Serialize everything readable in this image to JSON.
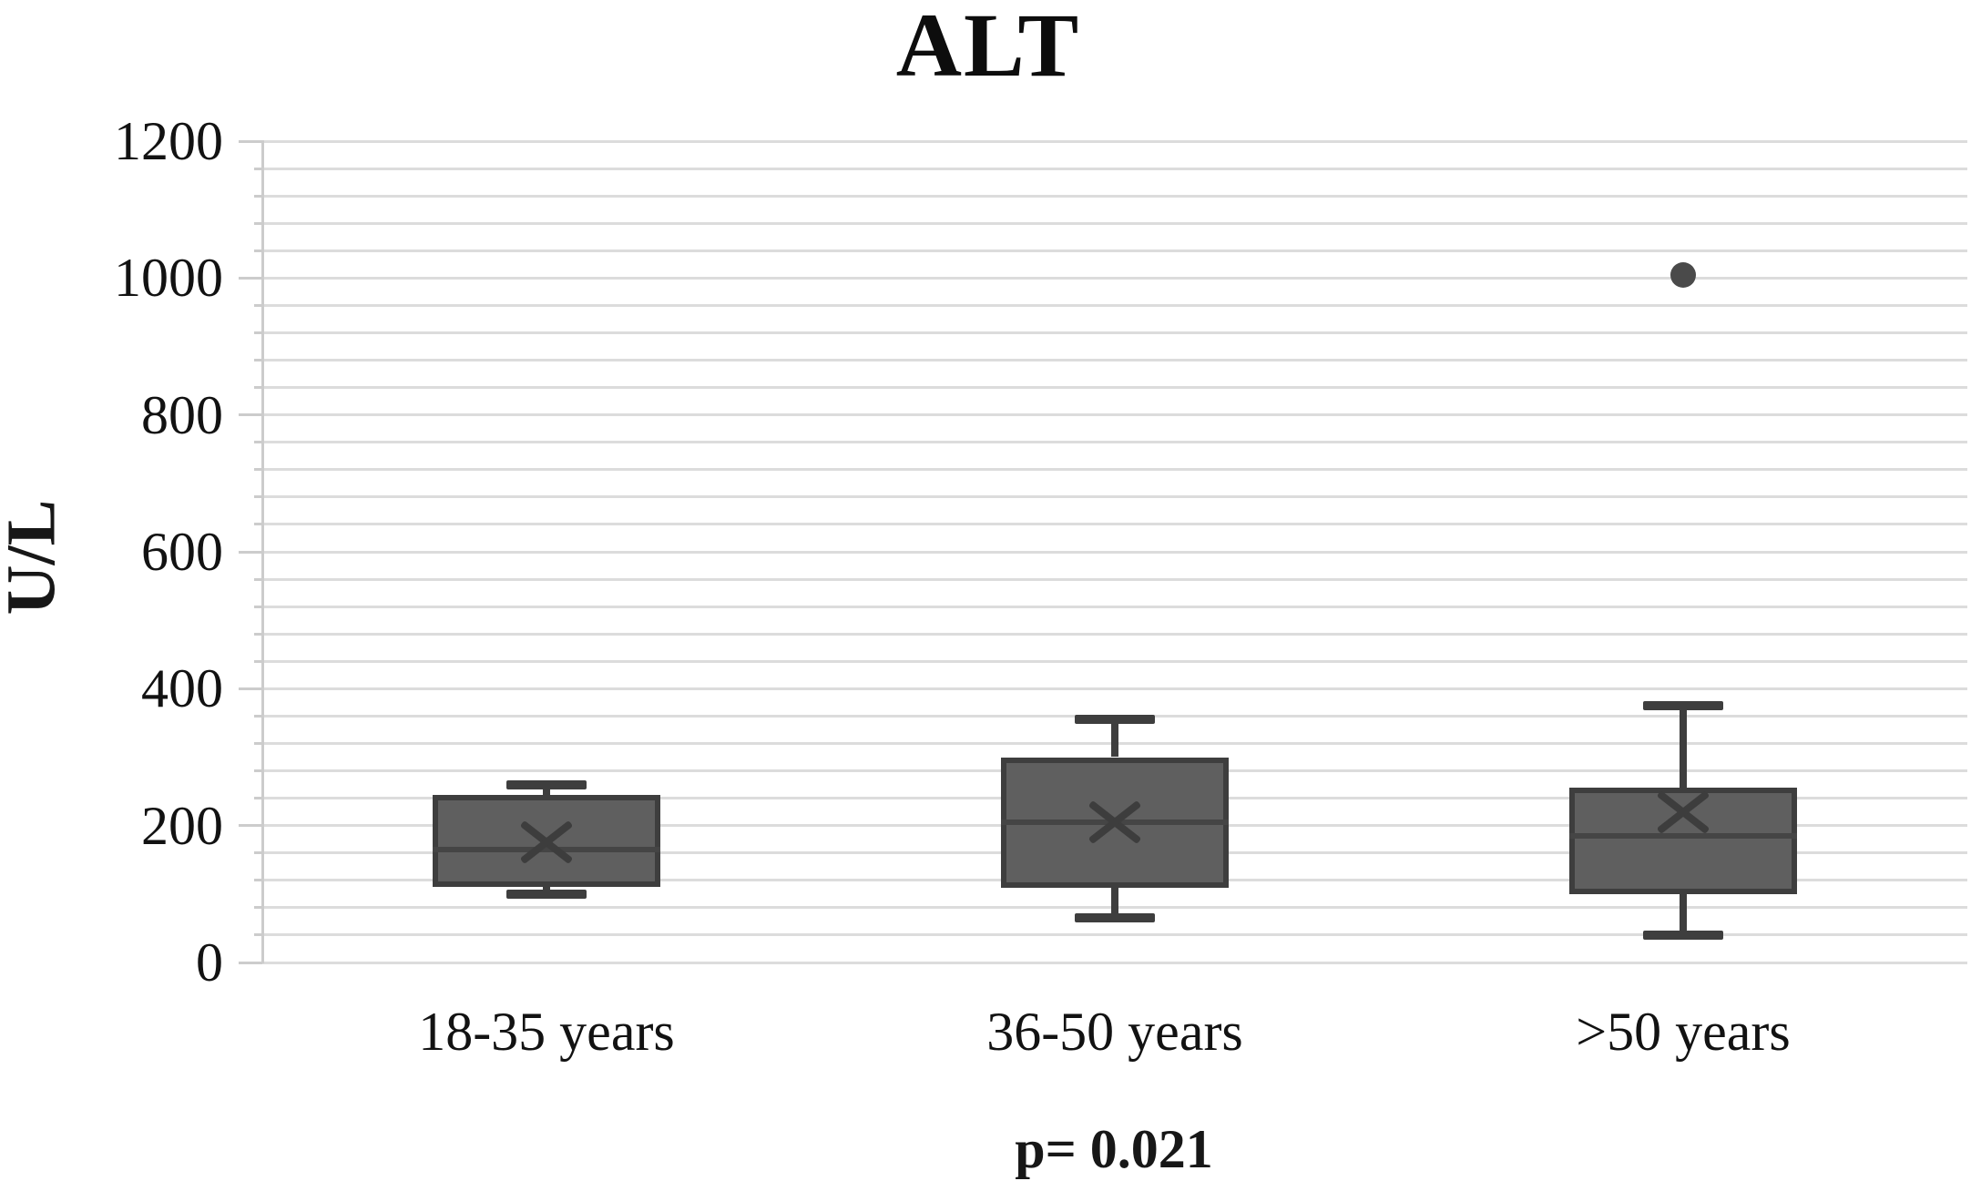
{
  "chart_data": {
    "type": "box",
    "title": "ALT",
    "ylabel": "U/L",
    "annotation": "p= 0.021",
    "ylim": [
      0,
      1200
    ],
    "yticks": [
      0,
      200,
      400,
      600,
      800,
      1000,
      1200
    ],
    "minor_grid_step": 40,
    "grid": "horizontal-minor",
    "legend": "none",
    "categories": [
      "18-35 years",
      "36-50 years",
      ">50 years"
    ],
    "series": [
      {
        "category": "18-35 years",
        "min": 100,
        "q1": 110,
        "median": 165,
        "mean": 175,
        "q3": 245,
        "max": 260,
        "outliers": []
      },
      {
        "category": "36-50 years",
        "min": 65,
        "q1": 110,
        "median": 205,
        "mean": 205,
        "q3": 300,
        "max": 355,
        "outliers": []
      },
      {
        "category": ">50 years",
        "min": 40,
        "q1": 100,
        "median": 185,
        "mean": 220,
        "q3": 255,
        "max": 375,
        "outliers": [
          1005
        ]
      }
    ]
  },
  "colors": {
    "box_fill": "#5f5f5f",
    "box_stroke": "#3e3e3e",
    "median_line": "#454545",
    "mean_marker": "#3d3d3d",
    "whisker": "#3e3e3e",
    "outlier": "#4a4a4a",
    "gridline": "#dcdcdc",
    "axis": "#cccccc",
    "text": "#121212"
  }
}
